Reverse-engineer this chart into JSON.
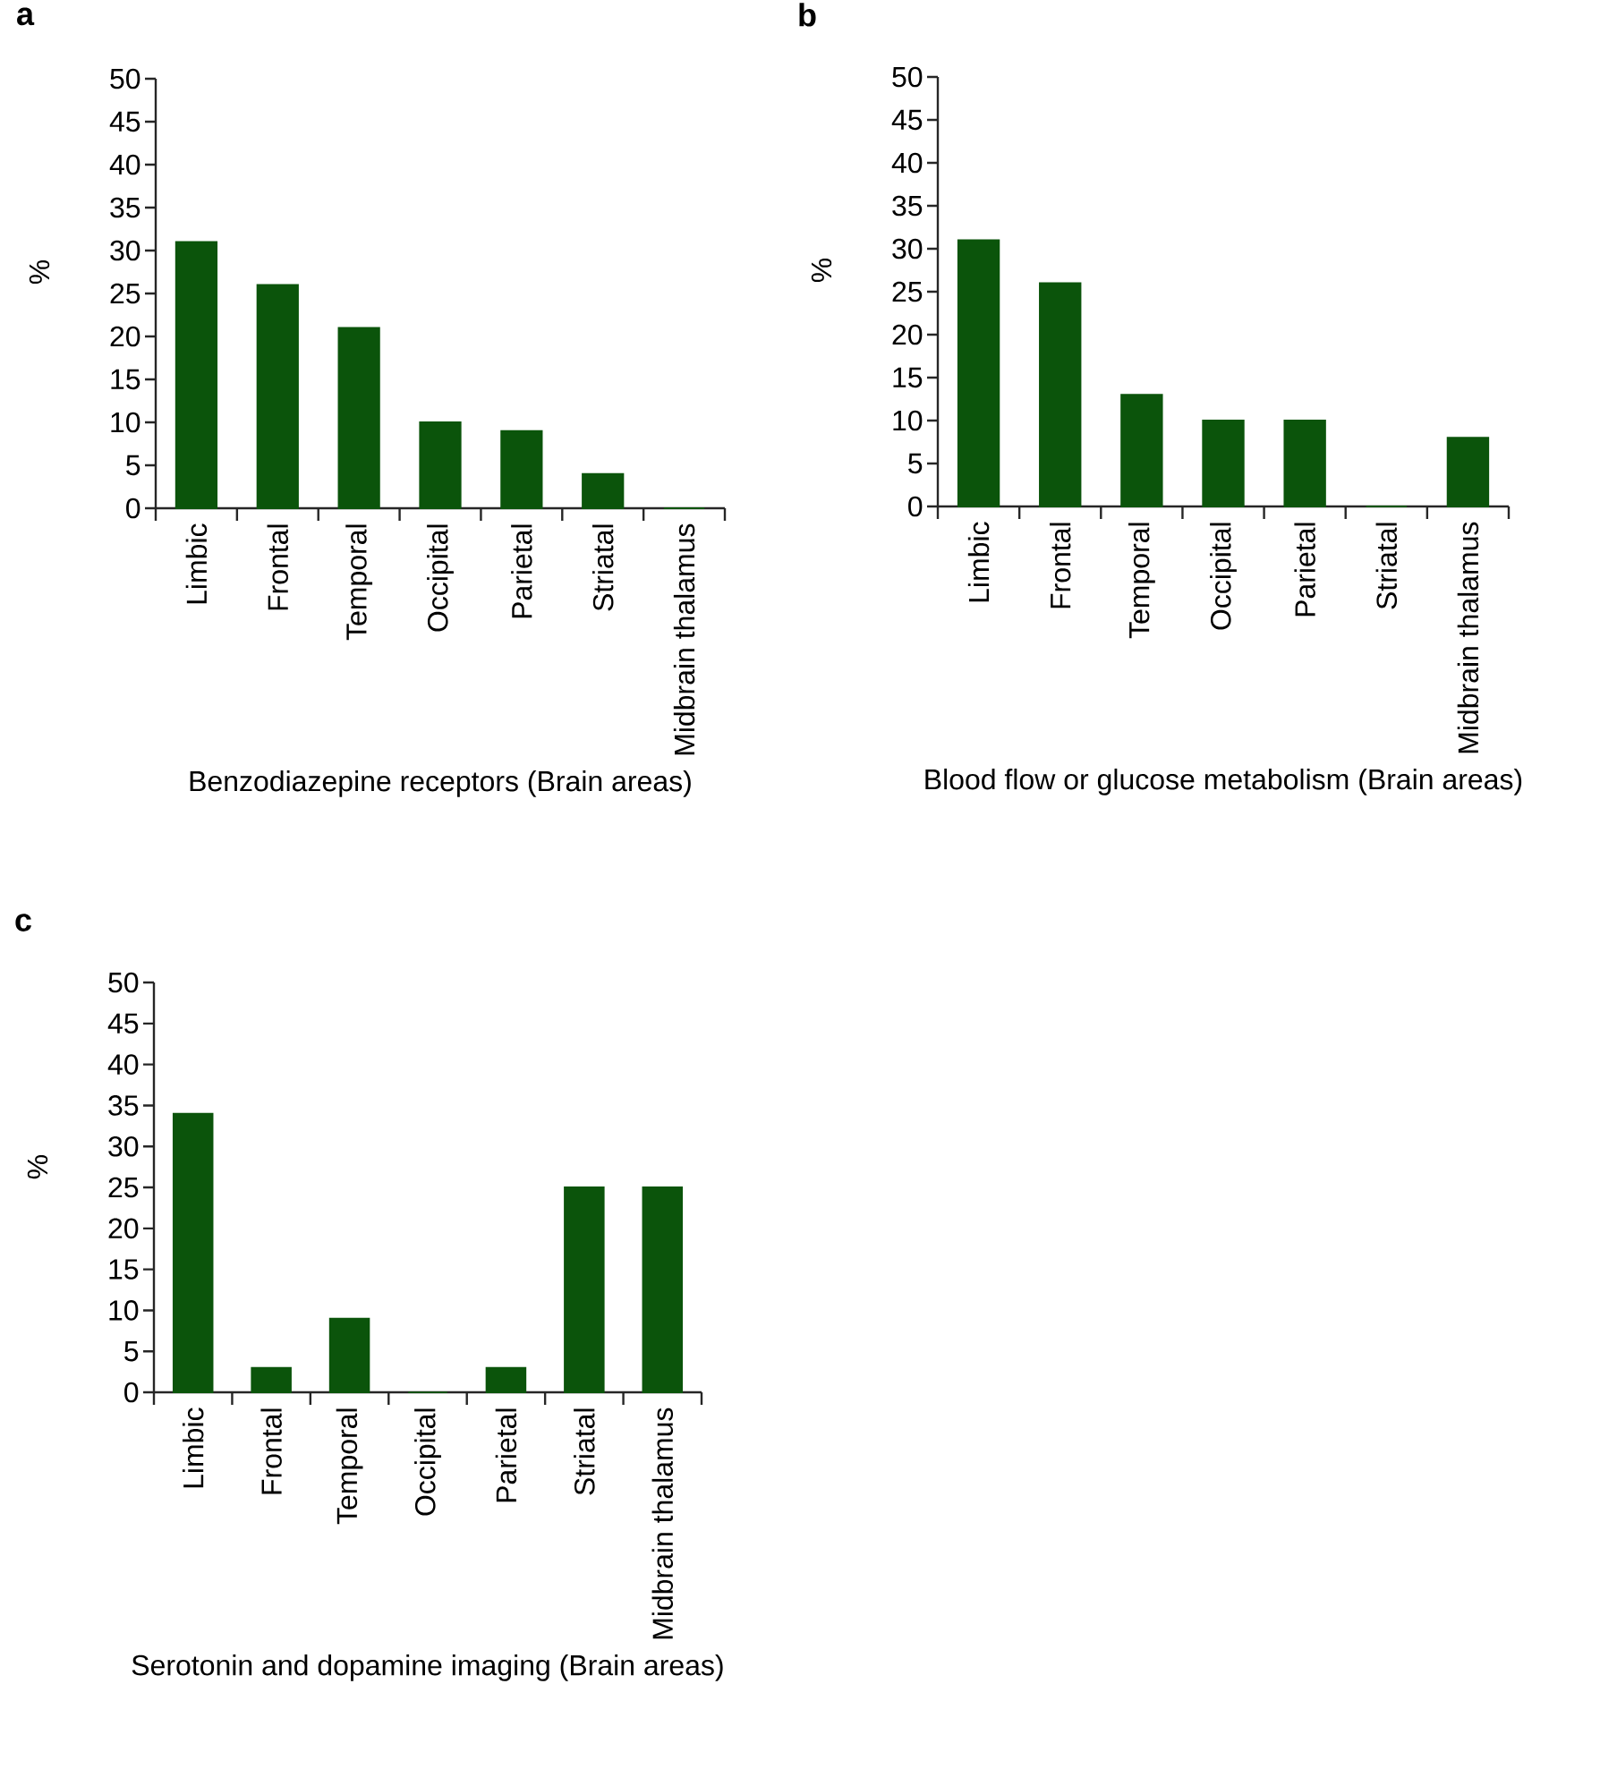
{
  "chart_data": [
    {
      "type": "bar",
      "title": "a",
      "ylabel": "%",
      "xlabel": "Benzodiazepine receptors (Brain areas)",
      "categories": [
        "Limbic",
        "Frontal",
        "Temporal",
        "Occipital",
        "Parietal",
        "Striatal",
        "Midbrain thalamus"
      ],
      "values": [
        31,
        26,
        21,
        10,
        9,
        4,
        0
      ],
      "color": "#0b540b",
      "ylim": [
        0,
        50
      ],
      "yticks": [
        0,
        5,
        10,
        15,
        20,
        25,
        30,
        35,
        40,
        45,
        50
      ]
    },
    {
      "type": "bar",
      "title": "b",
      "ylabel": "%",
      "xlabel": "Blood flow or glucose metabolism (Brain areas)",
      "categories": [
        "Limbic",
        "Frontal",
        "Temporal",
        "Occipital",
        "Parietal",
        "Striatal",
        "Midbrain thalamus"
      ],
      "values": [
        31,
        26,
        13,
        10,
        10,
        0,
        8
      ],
      "color": "#0b540b",
      "ylim": [
        0,
        50
      ],
      "yticks": [
        0,
        5,
        10,
        15,
        20,
        25,
        30,
        35,
        40,
        45,
        50
      ]
    },
    {
      "type": "bar",
      "title": "c",
      "ylabel": "%",
      "xlabel": "Serotonin and dopamine imaging (Brain areas)",
      "categories": [
        "Limbic",
        "Frontal",
        "Temporal",
        "Occipital",
        "Parietal",
        "Striatal",
        "Midbrain thalamus"
      ],
      "values": [
        34,
        3,
        9,
        0,
        3,
        25,
        25
      ],
      "color": "#0b540b",
      "ylim": [
        0,
        50
      ],
      "yticks": [
        0,
        5,
        10,
        15,
        20,
        25,
        30,
        35,
        40,
        45,
        50
      ]
    }
  ]
}
